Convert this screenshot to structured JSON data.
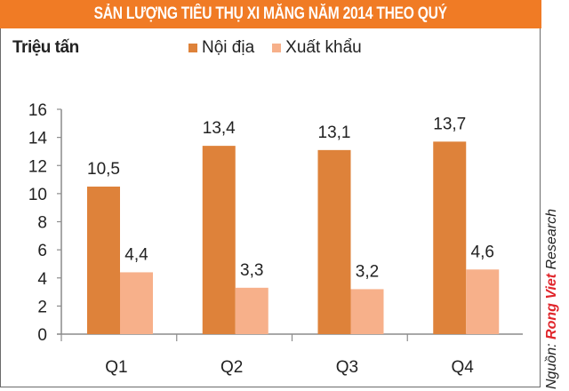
{
  "title": "SẢN LƯỢNG TIÊU THỤ XI MĂNG NĂM 2014 THEO QUÝ",
  "unit_label": "Triệu tấn",
  "legend": [
    {
      "label": "Nội địa",
      "color": "#de823a"
    },
    {
      "label": "Xuất khẩu",
      "color": "#f7b08a"
    }
  ],
  "source": {
    "prefix": "Nguồn: ",
    "brand": "Rong Viet",
    "suffix": " Research"
  },
  "colors": {
    "title_bar": "#f07b25",
    "axis": "#8c8c8c",
    "frame": "#6b6b6b"
  },
  "chart_data": {
    "type": "bar",
    "title": "SẢN LƯỢNG TIÊU THỤ XI MĂNG NĂM 2014 THEO QUÝ",
    "xlabel": "",
    "ylabel": "Triệu tấn",
    "categories": [
      "Q1",
      "Q2",
      "Q3",
      "Q4"
    ],
    "series": [
      {
        "name": "Nội địa",
        "values": [
          10.5,
          13.4,
          13.1,
          13.7
        ],
        "labels": [
          "10,5",
          "13,4",
          "13,1",
          "13,7"
        ],
        "color": "#de823a"
      },
      {
        "name": "Xuất khẩu",
        "values": [
          4.4,
          3.3,
          3.2,
          4.6
        ],
        "labels": [
          "4,4",
          "3,3",
          "3,2",
          "4,6"
        ],
        "color": "#f7b08a"
      }
    ],
    "ylim": [
      0,
      16
    ],
    "yticks": [
      0,
      2,
      4,
      6,
      8,
      10,
      12,
      14,
      16
    ],
    "grid": false,
    "legend_position": "top"
  }
}
